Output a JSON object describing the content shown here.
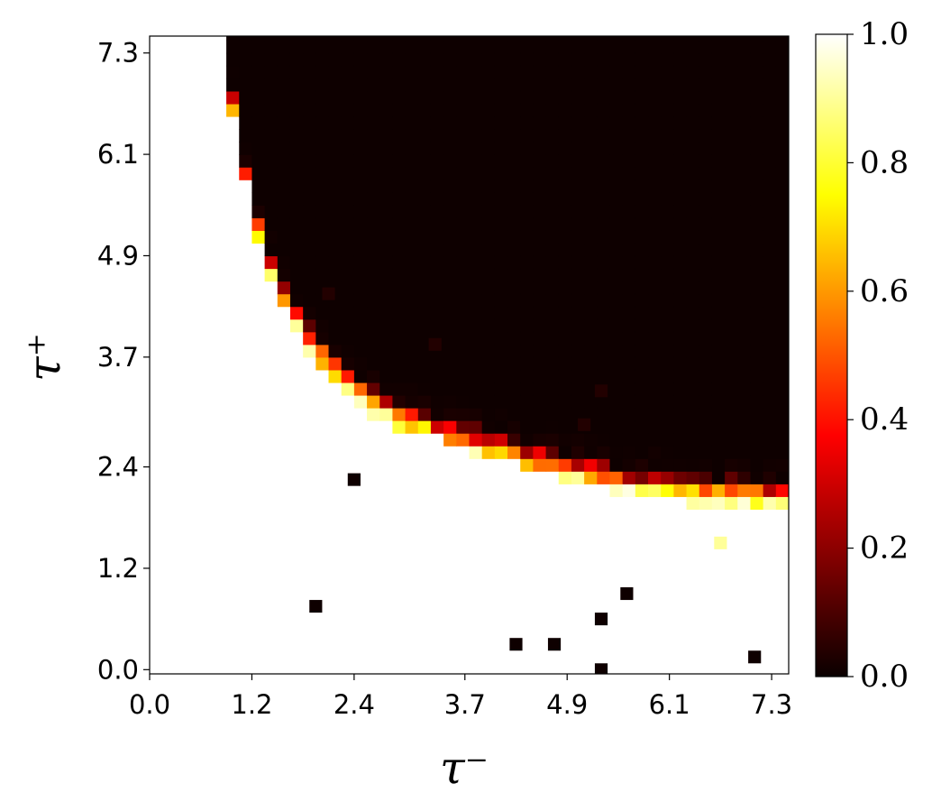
{
  "chart_data": {
    "type": "heatmap",
    "title": "",
    "xlabel": "τ⁻",
    "ylabel": "τ⁺",
    "x_range": [
      0,
      7.5
    ],
    "y_range": [
      -0.05,
      7.5
    ],
    "x_ticks": [
      {
        "value": 0.0,
        "label": "0.0"
      },
      {
        "value": 1.2,
        "label": "1.2"
      },
      {
        "value": 2.4,
        "label": "2.4"
      },
      {
        "value": 3.7,
        "label": "3.7"
      },
      {
        "value": 4.9,
        "label": "4.9"
      },
      {
        "value": 6.1,
        "label": "6.1"
      },
      {
        "value": 7.3,
        "label": "7.3"
      }
    ],
    "y_ticks": [
      {
        "value": 0.0,
        "label": "0.0"
      },
      {
        "value": 1.2,
        "label": "1.2"
      },
      {
        "value": 2.4,
        "label": "2.4"
      },
      {
        "value": 3.7,
        "label": "3.7"
      },
      {
        "value": 4.9,
        "label": "4.9"
      },
      {
        "value": 6.1,
        "label": "6.1"
      },
      {
        "value": 7.3,
        "label": "7.3"
      }
    ],
    "colormap": "hot",
    "colorbar": {
      "range": [
        0.0,
        1.0
      ],
      "ticks": [
        "0.0",
        "0.2",
        "0.4",
        "0.6",
        "0.8",
        "1.0"
      ]
    },
    "grid": false,
    "boundary_upper_right": [
      [
        0.85,
        7.5
      ],
      [
        0.9,
        7.0
      ],
      [
        1.0,
        6.3
      ],
      [
        1.1,
        5.8
      ],
      [
        1.2,
        5.3
      ],
      [
        1.35,
        4.8
      ],
      [
        1.55,
        4.3
      ],
      [
        1.8,
        3.85
      ],
      [
        2.1,
        3.45
      ],
      [
        2.5,
        3.1
      ],
      [
        3.0,
        2.8
      ],
      [
        3.6,
        2.6
      ],
      [
        4.3,
        2.4
      ],
      [
        5.0,
        2.2
      ],
      [
        5.7,
        2.05
      ],
      [
        6.5,
        1.95
      ],
      [
        7.5,
        1.9
      ]
    ],
    "transition_width": 0.35,
    "background_value": 1.0,
    "interior_value": 0.02,
    "outliers": [
      {
        "x": 2.4,
        "y": 2.25,
        "value": 0.02
      },
      {
        "x": 1.95,
        "y": 0.75,
        "value": 0.02
      },
      {
        "x": 4.3,
        "y": 0.3,
        "value": 0.02
      },
      {
        "x": 4.75,
        "y": 0.3,
        "value": 0.02
      },
      {
        "x": 5.3,
        "y": 0.6,
        "value": 0.02
      },
      {
        "x": 5.6,
        "y": 0.9,
        "value": 0.02
      },
      {
        "x": 5.3,
        "y": 0.0,
        "value": 0.02
      },
      {
        "x": 7.1,
        "y": 0.15,
        "value": 0.02
      },
      {
        "x": 6.7,
        "y": 1.5,
        "value": 0.9
      },
      {
        "x": 2.1,
        "y": 4.45,
        "value": 0.05
      },
      {
        "x": 3.35,
        "y": 3.85,
        "value": 0.05
      },
      {
        "x": 5.3,
        "y": 3.3,
        "value": 0.05
      },
      {
        "x": 5.1,
        "y": 2.9,
        "value": 0.05
      }
    ]
  }
}
